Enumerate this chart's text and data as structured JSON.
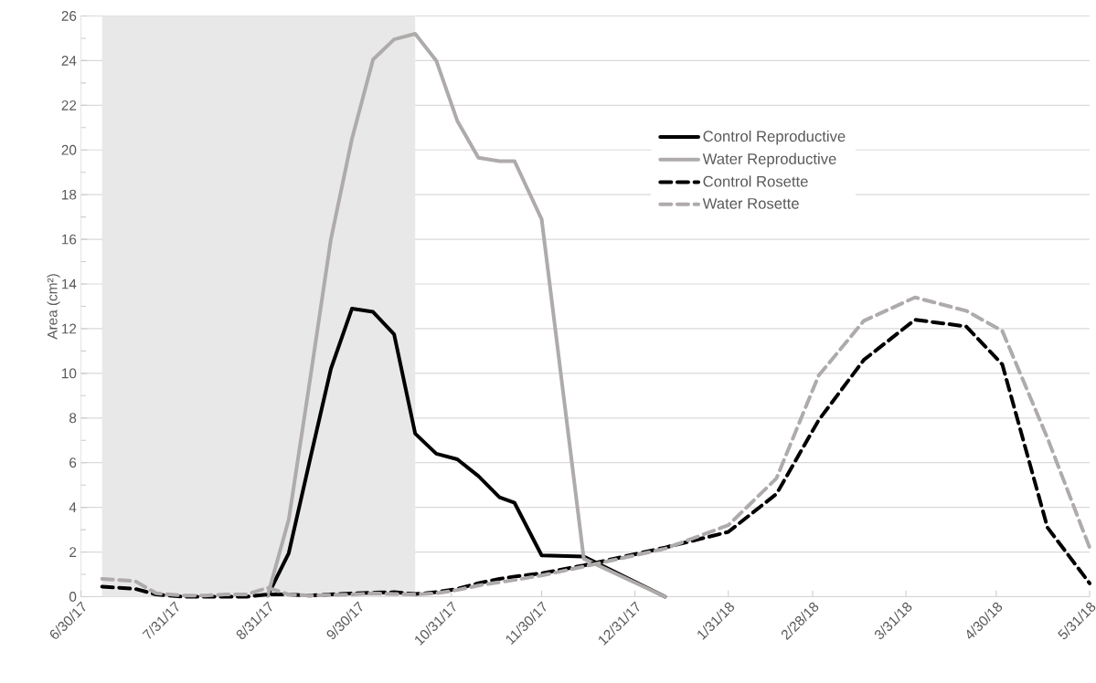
{
  "chart_data": {
    "type": "line",
    "ylabel": "Area (cm²)",
    "xlim": [
      "2017-06-30",
      "2018-05-31"
    ],
    "xticks": [
      {
        "value": "2017-06-30",
        "label": "6/30/17"
      },
      {
        "value": "2017-07-31",
        "label": "7/31/17"
      },
      {
        "value": "2017-08-31",
        "label": "8/31/17"
      },
      {
        "value": "2017-09-30",
        "label": "9/30/17"
      },
      {
        "value": "2017-10-31",
        "label": "10/31/17"
      },
      {
        "value": "2017-11-30",
        "label": "11/30/17"
      },
      {
        "value": "2017-12-31",
        "label": "12/31/17"
      },
      {
        "value": "2018-01-31",
        "label": "1/31/18"
      },
      {
        "value": "2018-02-28",
        "label": "2/28/18"
      },
      {
        "value": "2018-03-31",
        "label": "3/31/18"
      },
      {
        "value": "2018-04-30",
        "label": "4/30/18"
      },
      {
        "value": "2018-05-31",
        "label": "5/31/18"
      }
    ],
    "ylim": [
      0,
      26
    ],
    "yticks": [
      0,
      2,
      4,
      6,
      8,
      10,
      12,
      14,
      16,
      18,
      20,
      22,
      24,
      26
    ],
    "grid": "y",
    "legend": "right",
    "marker": "none",
    "bands": [
      {
        "axis": "x",
        "from": "2017-07-07",
        "to": "2017-10-19",
        "color": "#e8e8e8"
      }
    ],
    "series": [
      {
        "name": "Control Reproductive",
        "color": "#000000",
        "line_style": "solid",
        "x": [
          "2017-08-31",
          "2017-09-07",
          "2017-09-14",
          "2017-09-21",
          "2017-09-28",
          "2017-10-05",
          "2017-10-12",
          "2017-10-19",
          "2017-10-26",
          "2017-11-02",
          "2017-11-09",
          "2017-11-16",
          "2017-11-21",
          "2017-11-30",
          "2017-12-14",
          "2018-01-10"
        ],
        "values": [
          0.05,
          1.95,
          6.1,
          10.2,
          12.9,
          12.75,
          11.75,
          7.3,
          6.4,
          6.15,
          5.4,
          4.45,
          4.2,
          1.85,
          1.8,
          0
        ]
      },
      {
        "name": "Water Reproductive",
        "color": "#afabab",
        "line_style": "solid",
        "x": [
          "2017-08-31",
          "2017-09-07",
          "2017-09-14",
          "2017-09-21",
          "2017-09-28",
          "2017-10-05",
          "2017-10-12",
          "2017-10-19",
          "2017-10-26",
          "2017-11-02",
          "2017-11-09",
          "2017-11-16",
          "2017-11-21",
          "2017-11-30",
          "2017-12-14",
          "2018-01-10"
        ],
        "values": [
          0.05,
          3.45,
          9.65,
          16,
          20.5,
          24.05,
          24.95,
          25.2,
          24,
          21.3,
          19.65,
          19.5,
          19.5,
          16.9,
          1.7,
          0
        ]
      },
      {
        "name": "Control Rosette",
        "color": "#000000",
        "line_style": "dashed",
        "x": [
          "2017-07-07",
          "2017-07-18",
          "2017-07-25",
          "2017-08-03",
          "2017-08-10",
          "2017-08-17",
          "2017-08-24",
          "2017-08-31",
          "2017-09-07",
          "2017-09-14",
          "2017-09-21",
          "2017-09-28",
          "2017-10-05",
          "2017-10-12",
          "2017-10-19",
          "2017-10-26",
          "2017-11-02",
          "2017-11-09",
          "2017-11-16",
          "2017-11-21",
          "2017-11-30",
          "2017-12-14",
          "2018-01-10",
          "2018-01-31",
          "2018-02-16",
          "2018-03-02",
          "2018-03-17",
          "2018-04-03",
          "2018-04-20",
          "2018-05-02",
          "2018-05-17",
          "2018-05-31"
        ],
        "values": [
          0.45,
          0.35,
          0.1,
          0,
          0,
          0,
          0,
          0.1,
          0.1,
          0.05,
          0.1,
          0.15,
          0.18,
          0.2,
          0.12,
          0.2,
          0.35,
          0.6,
          0.8,
          0.9,
          1.05,
          1.4,
          2.2,
          2.9,
          4.6,
          7.9,
          10.6,
          12.4,
          12.1,
          10.4,
          3.1,
          0.6
        ]
      },
      {
        "name": "Water Rosette",
        "color": "#afabab",
        "line_style": "dashed",
        "x": [
          "2017-07-07",
          "2017-07-18",
          "2017-07-25",
          "2017-08-03",
          "2017-08-10",
          "2017-08-17",
          "2017-08-24",
          "2017-08-31",
          "2017-09-07",
          "2017-09-14",
          "2017-09-21",
          "2017-09-28",
          "2017-10-05",
          "2017-10-12",
          "2017-10-19",
          "2017-10-26",
          "2017-11-02",
          "2017-11-09",
          "2017-11-16",
          "2017-11-21",
          "2017-11-30",
          "2017-12-14",
          "2018-01-10",
          "2018-01-31",
          "2018-02-16",
          "2018-03-02",
          "2018-03-17",
          "2018-04-03",
          "2018-04-20",
          "2018-05-02",
          "2018-05-17",
          "2018-05-31"
        ],
        "values": [
          0.8,
          0.7,
          0.15,
          0.05,
          0.05,
          0.1,
          0.1,
          0.4,
          0.1,
          0.05,
          0.08,
          0.1,
          0.15,
          0.12,
          0.1,
          0.15,
          0.3,
          0.5,
          0.65,
          0.75,
          0.95,
          1.35,
          2.15,
          3.2,
          5.3,
          9.9,
          12.35,
          13.4,
          12.8,
          11.9,
          7.1,
          2.2
        ]
      }
    ]
  }
}
